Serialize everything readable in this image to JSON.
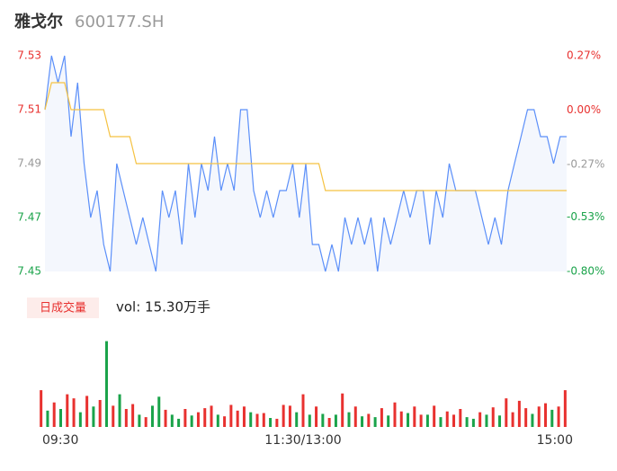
{
  "header": {
    "name": "雅戈尔",
    "code": "600177.SH"
  },
  "chart_data": [
    {
      "type": "line",
      "ylim": [
        7.45,
        7.53
      ],
      "yticks": [
        7.45,
        7.47,
        7.49,
        7.51,
        7.53
      ],
      "ytick_colors": [
        "#1aa34a",
        "#1aa34a",
        "#999999",
        "#e8312f",
        "#e8312f"
      ],
      "y2lim": [
        -0.8,
        0.27
      ],
      "y2ticks": [
        {
          "value": -0.8,
          "label": "-0.80%"
        },
        {
          "value": -0.53,
          "label": "-0.53%"
        },
        {
          "value": -0.27,
          "label": "-0.27%"
        },
        {
          "value": 0.0,
          "label": "0.00%"
        },
        {
          "value": 0.27,
          "label": "0.27%"
        }
      ],
      "y2tick_colors": [
        "#1aa34a",
        "#1aa34a",
        "#999999",
        "#e8312f",
        "#e8312f"
      ],
      "series": [
        {
          "color": "#5b8ff9",
          "values": [
            7.51,
            7.53,
            7.52,
            7.53,
            7.5,
            7.52,
            7.49,
            7.47,
            7.48,
            7.46,
            7.45,
            7.49,
            7.48,
            7.47,
            7.46,
            7.47,
            7.46,
            7.45,
            7.48,
            7.47,
            7.48,
            7.46,
            7.49,
            7.47,
            7.49,
            7.48,
            7.5,
            7.48,
            7.49,
            7.48,
            7.51,
            7.51,
            7.48,
            7.47,
            7.48,
            7.47,
            7.48,
            7.48,
            7.49,
            7.47,
            7.49,
            7.46,
            7.46,
            7.45,
            7.46,
            7.45,
            7.47,
            7.46,
            7.47,
            7.46,
            7.47,
            7.45,
            7.47,
            7.46,
            7.47,
            7.48,
            7.47,
            7.48,
            7.48,
            7.46,
            7.48,
            7.47,
            7.49,
            7.48,
            7.48,
            7.48,
            7.48,
            7.47,
            7.46,
            7.47,
            7.46,
            7.48,
            7.49,
            7.5,
            7.51,
            7.51,
            7.5,
            7.5,
            7.49,
            7.5,
            7.5
          ]
        },
        {
          "color": "#f5c242",
          "values": [
            7.51,
            7.52,
            7.52,
            7.52,
            7.51,
            7.51,
            7.51,
            7.51,
            7.51,
            7.51,
            7.5,
            7.5,
            7.5,
            7.5,
            7.49,
            7.49,
            7.49,
            7.49,
            7.49,
            7.49,
            7.49,
            7.49,
            7.49,
            7.49,
            7.49,
            7.49,
            7.49,
            7.49,
            7.49,
            7.49,
            7.49,
            7.49,
            7.49,
            7.49,
            7.49,
            7.49,
            7.49,
            7.49,
            7.49,
            7.49,
            7.49,
            7.49,
            7.49,
            7.48,
            7.48,
            7.48,
            7.48,
            7.48,
            7.48,
            7.48,
            7.48,
            7.48,
            7.48,
            7.48,
            7.48,
            7.48,
            7.48,
            7.48,
            7.48,
            7.48,
            7.48,
            7.48,
            7.48,
            7.48,
            7.48,
            7.48,
            7.48,
            7.48,
            7.48,
            7.48,
            7.48,
            7.48,
            7.48,
            7.48,
            7.48,
            7.48,
            7.48,
            7.48,
            7.48,
            7.48,
            7.48
          ]
        }
      ]
    },
    {
      "type": "bar",
      "title": "日成交量",
      "annotation": "vol: 15.30万手",
      "ylim": [
        0,
        11000
      ],
      "categories": [
        "09:30",
        null,
        null,
        null,
        null,
        null,
        null,
        null,
        null,
        null,
        null,
        null,
        null,
        null,
        null,
        null,
        null,
        null,
        null,
        null,
        null,
        null,
        null,
        null,
        null,
        null,
        null,
        null,
        null,
        null,
        null,
        null,
        null,
        null,
        null,
        null,
        null,
        null,
        null,
        null,
        "11:30/13:00",
        null,
        null,
        null,
        null,
        null,
        null,
        null,
        null,
        null,
        null,
        null,
        null,
        null,
        null,
        null,
        null,
        null,
        null,
        null,
        null,
        null,
        null,
        null,
        null,
        null,
        null,
        null,
        null,
        null,
        null,
        null,
        null,
        null,
        null,
        null,
        null,
        null,
        null,
        null,
        "15:00"
      ],
      "values": [
        4500,
        2000,
        3000,
        2200,
        4000,
        3500,
        1800,
        3800,
        2500,
        3300,
        10500,
        2600,
        4000,
        2200,
        2800,
        1500,
        1200,
        2600,
        3700,
        2100,
        1500,
        1000,
        2200,
        1400,
        1800,
        2300,
        2600,
        1500,
        1300,
        2700,
        2000,
        2500,
        1800,
        1600,
        1700,
        1100,
        1000,
        2700,
        2600,
        1800,
        4000,
        1500,
        2500,
        1600,
        1100,
        1500,
        4100,
        1800,
        2500,
        1300,
        1600,
        1200,
        2300,
        1400,
        3000,
        1900,
        1700,
        2500,
        1500,
        1500,
        2600,
        1200,
        1900,
        1500,
        2200,
        1200,
        1000,
        1800,
        1500,
        2400,
        1400,
        3500,
        1800,
        3200,
        2300,
        1600,
        2500,
        2900,
        2100,
        2500,
        4500
      ],
      "colors": [
        "#e8312f",
        "#1aa34a",
        "#e8312f",
        "#1aa34a",
        "#e8312f",
        "#e8312f",
        "#1aa34a",
        "#e8312f",
        "#1aa34a",
        "#e8312f",
        "#1aa34a",
        "#e8312f",
        "#1aa34a",
        "#e8312f",
        "#e8312f",
        "#1aa34a",
        "#e8312f",
        "#1aa34a",
        "#1aa34a",
        "#e8312f",
        "#1aa34a",
        "#1aa34a",
        "#e8312f",
        "#1aa34a",
        "#e8312f",
        "#e8312f",
        "#e8312f",
        "#1aa34a",
        "#e8312f",
        "#e8312f",
        "#e8312f",
        "#e8312f",
        "#1aa34a",
        "#e8312f",
        "#e8312f",
        "#1aa34a",
        "#e8312f",
        "#e8312f",
        "#e8312f",
        "#1aa34a",
        "#e8312f",
        "#1aa34a",
        "#e8312f",
        "#1aa34a",
        "#e8312f",
        "#1aa34a",
        "#e8312f",
        "#1aa34a",
        "#e8312f",
        "#1aa34a",
        "#e8312f",
        "#1aa34a",
        "#e8312f",
        "#1aa34a",
        "#e8312f",
        "#e8312f",
        "#1aa34a",
        "#e8312f",
        "#e8312f",
        "#1aa34a",
        "#e8312f",
        "#1aa34a",
        "#e8312f",
        "#e8312f",
        "#e8312f",
        "#1aa34a",
        "#1aa34a",
        "#e8312f",
        "#1aa34a",
        "#e8312f",
        "#1aa34a",
        "#e8312f",
        "#e8312f",
        "#e8312f",
        "#e8312f",
        "#1aa34a",
        "#e8312f",
        "#e8312f",
        "#1aa34a",
        "#e8312f",
        "#e8312f"
      ]
    }
  ]
}
